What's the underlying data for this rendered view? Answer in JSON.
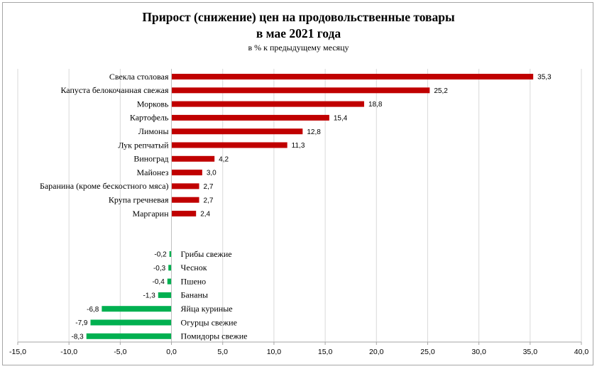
{
  "chart_data": {
    "type": "bar",
    "orientation": "horizontal",
    "title": "Прирост (снижение) цен на продовольственные товары",
    "title_line2": "в мае 2021 года",
    "subtitle": "в % к предыдущему месяцу",
    "xlim": [
      -15,
      40
    ],
    "x_ticks": [
      "-15,0",
      "-10,0",
      "-5,0",
      "0,0",
      "5,0",
      "10,0",
      "15,0",
      "20,0",
      "25,0",
      "30,0",
      "35,0",
      "40,0"
    ],
    "grid": true,
    "colors": {
      "increase": "#c00000",
      "decrease": "#00b050",
      "grid": "#d9d9d9",
      "axis": "#a6a6a6"
    },
    "increases": [
      {
        "label": "Свекла столовая",
        "value": 35.3,
        "value_label": "35,3"
      },
      {
        "label": "Капуста белокочанная свежая",
        "value": 25.2,
        "value_label": "25,2"
      },
      {
        "label": "Морковь",
        "value": 18.8,
        "value_label": "18,8"
      },
      {
        "label": "Картофель",
        "value": 15.4,
        "value_label": "15,4"
      },
      {
        "label": "Лимоны",
        "value": 12.8,
        "value_label": "12,8"
      },
      {
        "label": "Лук репчатый",
        "value": 11.3,
        "value_label": "11,3"
      },
      {
        "label": "Виноград",
        "value": 4.2,
        "value_label": "4,2"
      },
      {
        "label": "Майонез",
        "value": 3.0,
        "value_label": "3,0"
      },
      {
        "label": "Баранина (кроме бескостного мяса)",
        "value": 2.7,
        "value_label": "2,7"
      },
      {
        "label": "Крупа гречневая",
        "value": 2.7,
        "value_label": "2,7"
      },
      {
        "label": "Маргарин",
        "value": 2.4,
        "value_label": "2,4"
      }
    ],
    "decreases": [
      {
        "label": "Грибы свежие",
        "value": -0.2,
        "value_label": "-0,2"
      },
      {
        "label": "Чеснок",
        "value": -0.3,
        "value_label": "-0,3"
      },
      {
        "label": "Пшено",
        "value": -0.4,
        "value_label": "-0,4"
      },
      {
        "label": "Бананы",
        "value": -1.3,
        "value_label": "-1,3"
      },
      {
        "label": "Яйца куриные",
        "value": -6.8,
        "value_label": "-6,8"
      },
      {
        "label": "Огурцы свежие",
        "value": -7.9,
        "value_label": "-7,9"
      },
      {
        "label": "Помидоры свежие",
        "value": -8.3,
        "value_label": "-8,3"
      }
    ]
  }
}
